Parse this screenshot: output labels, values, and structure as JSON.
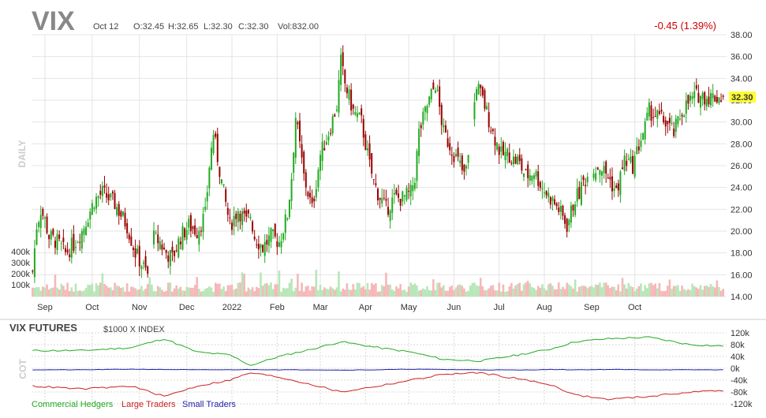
{
  "header": {
    "symbol": "VIX",
    "date": "Oct 12",
    "open": "O:32.45",
    "high": "H:32.65",
    "low": "L:32.30",
    "close": "C:32.30",
    "volume": "Vol:832.00",
    "change": "-0.45 (1.39%)",
    "last_price": "32.30",
    "period": "DAILY"
  },
  "volume_axis_labels": [
    "400k",
    "300k",
    "200k",
    "100k"
  ],
  "cot": {
    "title": "VIX FUTURES",
    "subtitle": "$1000 X INDEX",
    "side_label": "COT",
    "y_ticks": [
      "120k",
      "80k",
      "40k",
      "0k",
      "-40k",
      "-80k",
      "-120k"
    ],
    "y_values": [
      120000,
      80000,
      40000,
      0,
      -40000,
      -80000,
      -120000
    ],
    "legend": [
      {
        "label": "Commercial Hedgers",
        "color": "#22aa22"
      },
      {
        "label": "Large Traders",
        "color": "#cc2222"
      },
      {
        "label": "Small Traders",
        "color": "#2222aa"
      }
    ]
  },
  "colors": {
    "up": "#22aa22",
    "down": "#990000",
    "vol_up": "#b8e6b8",
    "vol_down": "#f5b8b8",
    "highlight": "#ffff33"
  },
  "chart_data": [
    {
      "type": "candlestick",
      "title": "VIX",
      "x_tick_labels": [
        "Sep",
        "Oct",
        "Nov",
        "Dec",
        "2022",
        "Feb",
        "Mar",
        "Apr",
        "May",
        "Jun",
        "Jul",
        "Aug",
        "Sep",
        "Oct"
      ],
      "ylim": [
        14,
        38
      ],
      "y_ticks": [
        38,
        36,
        34,
        32,
        30,
        28,
        26,
        24,
        22,
        20,
        18,
        16,
        14
      ],
      "y_tick_labels": [
        "38.00",
        "36.00",
        "34.00",
        "32.00",
        "30.00",
        "28.00",
        "26.00",
        "24.00",
        "22.00",
        "20.00",
        "18.00",
        "16.00",
        "14.00"
      ],
      "last_close": 32.3,
      "anchors": {
        "x": [
          0,
          2,
          4,
          6,
          8,
          12,
          16,
          20,
          24,
          30,
          34,
          40,
          46,
          50,
          56,
          58,
          62,
          64,
          68,
          72,
          76,
          80,
          84,
          86,
          88,
          92,
          96,
          100,
          104,
          106,
          108,
          112,
          116,
          120,
          124,
          126,
          128,
          132,
          136,
          140,
          144,
          148,
          150,
          152,
          156,
          160,
          164,
          166,
          168,
          172,
          176,
          180,
          184,
          186,
          188,
          192,
          196,
          200,
          204,
          208,
          210,
          212,
          216,
          220,
          224,
          228,
          232,
          234,
          236,
          240,
          244,
          248,
          252,
          256,
          260,
          264,
          266,
          268,
          272,
          276,
          280,
          284,
          288,
          292,
          296,
          298,
          300,
          304,
          308,
          312,
          316,
          320,
          324,
          328,
          330,
          332,
          336
        ],
        "close": [
          16.3,
          20.5,
          22.0,
          21.0,
          19.5,
          19.0,
          18.0,
          18.8,
          20.0,
          22.8,
          23.5,
          22.5,
          20.5,
          18.0,
          16.0,
          19.5,
          19.0,
          18.2,
          17.5,
          19.5,
          20.5,
          20.0,
          21.5,
          26.0,
          29.0,
          24.5,
          20.5,
          22.0,
          20.8,
          21.5,
          19.5,
          18.5,
          19.5,
          19.0,
          21.5,
          25.0,
          30.5,
          25.0,
          22.0,
          27.0,
          29.0,
          31.5,
          35.5,
          33.5,
          31.0,
          30.0,
          26.0,
          24.5,
          23.5,
          22.0,
          23.0,
          23.0,
          23.5,
          25.0,
          29.0,
          31.5,
          33.5,
          29.0,
          27.5,
          26.0,
          25.0,
          26.5,
          33.5,
          31.5,
          29.0,
          27.0,
          27.0,
          26.5,
          26.5,
          25.0,
          25.5,
          24.0,
          23.0,
          22.0,
          20.5,
          23.0,
          23.5,
          24.5,
          25.5,
          26.0,
          25.0,
          23.5,
          26.5,
          26.0,
          28.5,
          29.5,
          31.0,
          30.5,
          30.0,
          29.0,
          31.0,
          32.0,
          32.5,
          32.3,
          32.3,
          32.3,
          32.3
        ]
      }
    },
    {
      "type": "line",
      "title": "VIX FUTURES",
      "ylim": [
        -120000,
        120000
      ],
      "series": [
        {
          "name": "Commercial Hedgers",
          "x": [
            0,
            24,
            48,
            64,
            80,
            96,
            106,
            120,
            136,
            150,
            168,
            184,
            200,
            218,
            236,
            252,
            264,
            280,
            300,
            320,
            336
          ],
          "values": [
            60000,
            60000,
            70000,
            100000,
            55000,
            45000,
            10000,
            40000,
            65000,
            90000,
            70000,
            55000,
            30000,
            25000,
            45000,
            65000,
            90000,
            100000,
            105000,
            80000,
            75000
          ]
        },
        {
          "name": "Large Traders",
          "x": [
            0,
            24,
            48,
            64,
            80,
            96,
            106,
            120,
            136,
            150,
            168,
            184,
            200,
            218,
            236,
            252,
            264,
            280,
            300,
            320,
            336
          ],
          "values": [
            -60000,
            -70000,
            -60000,
            -95000,
            -60000,
            -40000,
            -15000,
            -30000,
            -55000,
            -80000,
            -60000,
            -40000,
            -20000,
            -15000,
            -35000,
            -55000,
            -90000,
            -105000,
            -95000,
            -80000,
            -75000
          ]
        },
        {
          "name": "Small Traders",
          "x": [
            0,
            24,
            48,
            64,
            80,
            96,
            106,
            120,
            136,
            150,
            168,
            184,
            200,
            218,
            236,
            252,
            264,
            280,
            300,
            320,
            336
          ],
          "values": [
            -5000,
            -5000,
            -3000,
            -4000,
            -5000,
            -5000,
            -4000,
            -5000,
            -5000,
            -6000,
            -5000,
            -3000,
            -4000,
            -5000,
            -6000,
            -4000,
            -5000,
            -4000,
            -5000,
            -5000,
            -5000
          ]
        }
      ]
    }
  ]
}
